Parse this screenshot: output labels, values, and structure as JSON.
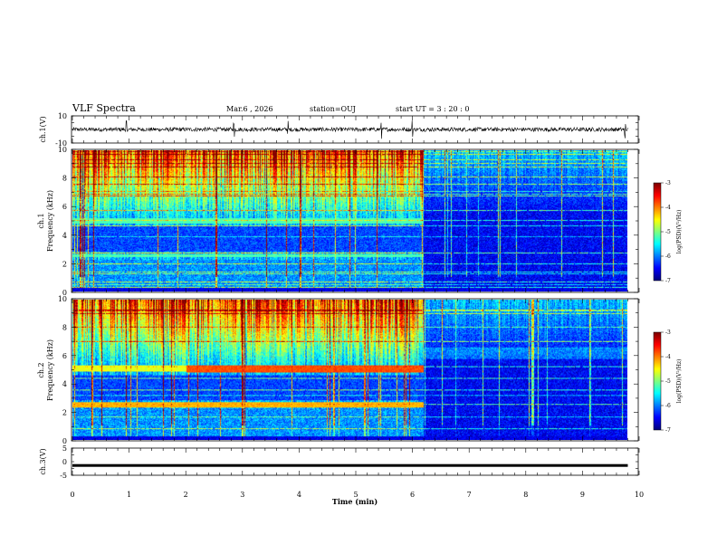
{
  "header": {
    "title": "VLF Spectra",
    "date": "Mar.6 , 2026",
    "station": "station=OUJ",
    "start": "start UT = 3 : 20 : 0"
  },
  "colors": {
    "low": "#00007a",
    "high": "#ff0000",
    "waveform": "#000000"
  },
  "chart_data": [
    {
      "type": "line",
      "name": "ch1-waveform",
      "ylabel": "ch.1(V)",
      "ylim": [
        -10,
        10
      ],
      "yticks": [
        "10",
        "-10"
      ],
      "values_summary": {
        "mean": 0,
        "amplitude": 1.5,
        "spikes_at_min": [
          0.95,
          2.85,
          3.8,
          5.45,
          6.0,
          9.75
        ]
      }
    },
    {
      "type": "heatmap",
      "name": "ch1-spectrogram",
      "ylabel": "ch.1\nFrequency (kHz)",
      "ylim": [
        0,
        10
      ],
      "yticks": [
        "0",
        "2",
        "4",
        "6",
        "8",
        "10"
      ],
      "xlim": [
        0,
        10
      ],
      "colorbar": {
        "label": "log(PSD)(V²/Hz)",
        "ticks": [
          "-3",
          "-4",
          "-5",
          "-6",
          "-7"
        ],
        "range": [
          -7,
          -3
        ]
      },
      "bands": [
        {
          "from_min": 0,
          "to_min": 6.2,
          "low_khz": 2.4,
          "high_khz": 2.6,
          "level": -5.2
        },
        {
          "from_min": 0,
          "to_min": 6.2,
          "low_khz": 4.8,
          "high_khz": 5.2,
          "level": -5.2
        }
      ]
    },
    {
      "type": "heatmap",
      "name": "ch2-spectrogram",
      "ylabel": "ch.2\nFrequency (kHz)",
      "ylim": [
        0,
        10
      ],
      "yticks": [
        "0",
        "2",
        "4",
        "6",
        "8",
        "10"
      ],
      "xlim": [
        0,
        10
      ],
      "colorbar": {
        "label": "log(PSD)(V²/Hz)",
        "ticks": [
          "-3",
          "-4",
          "-5",
          "-6",
          "-7"
        ],
        "range": [
          -7,
          -3
        ]
      },
      "bands": [
        {
          "from_min": 0,
          "to_min": 2.0,
          "low_khz": 4.9,
          "high_khz": 5.3,
          "level": -4.6
        },
        {
          "from_min": 2.0,
          "to_min": 6.2,
          "low_khz": 4.8,
          "high_khz": 5.3,
          "level": -3.8
        },
        {
          "from_min": 0,
          "to_min": 6.2,
          "low_khz": 2.3,
          "high_khz": 2.7,
          "level": -4.2
        }
      ]
    },
    {
      "type": "line",
      "name": "ch3-signal",
      "ylabel": "ch.3(V)",
      "ylim": [
        -5,
        5
      ],
      "yticks": [
        "5",
        "0",
        "-5"
      ],
      "values_summary": {
        "mean": -1.4,
        "amplitude": 0.2
      }
    }
  ],
  "xaxis": {
    "label": "Time (min)",
    "ticks": [
      "0",
      "1",
      "2",
      "3",
      "4",
      "5",
      "6",
      "7",
      "8",
      "9",
      "10"
    ],
    "data_end_min": 9.8
  }
}
